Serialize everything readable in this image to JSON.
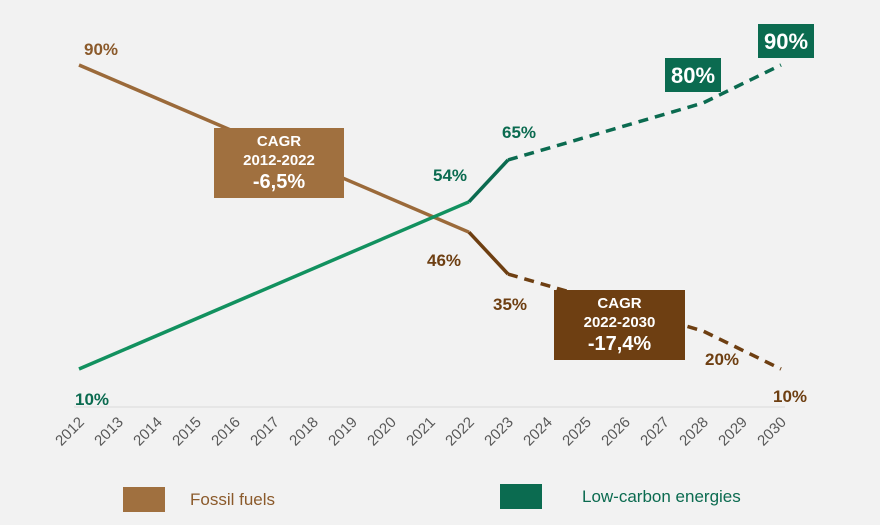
{
  "chart_data": {
    "type": "line",
    "x": [
      "2012",
      "2013",
      "2014",
      "2015",
      "2016",
      "2017",
      "2018",
      "2019",
      "2020",
      "2021",
      "2022",
      "2023",
      "2024",
      "2025",
      "2026",
      "2027",
      "2028",
      "2029",
      "2030"
    ],
    "ylim": [
      10,
      90
    ],
    "grid": false,
    "legend_position": "bottom",
    "series": [
      {
        "name": "Fossil fuels",
        "color": "#9b6a3a",
        "projection_color": "#6e3f12",
        "points": [
          {
            "x": "2012",
            "y": 90,
            "style": "solid"
          },
          {
            "x": "2022",
            "y": 46,
            "style": "solid"
          },
          {
            "x": "2023",
            "y": 35,
            "style": "solid"
          },
          {
            "x": "2028",
            "y": 20,
            "style": "dashed"
          },
          {
            "x": "2030",
            "y": 10,
            "style": "dashed"
          }
        ]
      },
      {
        "name": "Low-carbon energies",
        "color": "#12915f",
        "projection_color": "#0b6b50",
        "points": [
          {
            "x": "2012",
            "y": 10,
            "style": "solid"
          },
          {
            "x": "2022",
            "y": 54,
            "style": "solid"
          },
          {
            "x": "2023",
            "y": 65,
            "style": "solid"
          },
          {
            "x": "2028",
            "y": 80,
            "style": "dashed"
          },
          {
            "x": "2030",
            "y": 90,
            "style": "dashed"
          }
        ]
      }
    ],
    "data_labels": [
      {
        "text": "90%",
        "x": "2012",
        "y": 90,
        "color": "#8b5a2b",
        "boxed": false
      },
      {
        "text": "10%",
        "x": "2012",
        "y": 10,
        "color": "#0b6b50",
        "boxed": false
      },
      {
        "text": "54%",
        "x": "2022",
        "y": 54,
        "color": "#0b6b50",
        "boxed": false
      },
      {
        "text": "46%",
        "x": "2022",
        "y": 46,
        "color": "#6e3f12",
        "boxed": false
      },
      {
        "text": "65%",
        "x": "2023",
        "y": 65,
        "color": "#0b6b50",
        "boxed": false
      },
      {
        "text": "35%",
        "x": "2023",
        "y": 35,
        "color": "#6e3f12",
        "boxed": false
      },
      {
        "text": "80%",
        "x": "2028",
        "y": 80,
        "color": "#0b6b50",
        "boxed": true
      },
      {
        "text": "20%",
        "x": "2028",
        "y": 20,
        "color": "#6e3f12",
        "boxed": false
      },
      {
        "text": "90%",
        "x": "2030",
        "y": 90,
        "color": "#0b6b50",
        "boxed": true
      },
      {
        "text": "10%",
        "x": "2030",
        "y": 10,
        "color": "#6e3f12",
        "boxed": false
      }
    ],
    "annotations": [
      {
        "lines": [
          "CAGR",
          "2012-2022",
          "-6,5%"
        ],
        "fill": "#a0703f"
      },
      {
        "lines": [
          "CAGR",
          "2022-2030",
          "-17,4%"
        ],
        "fill": "#6e3f12"
      }
    ],
    "legend": [
      {
        "label": "Fossil fuels",
        "swatch": "#a0703f",
        "text_color": "#8b5a2b"
      },
      {
        "label": "Low-carbon energies",
        "swatch": "#0b6b50",
        "text_color": "#0b6b50"
      }
    ]
  }
}
